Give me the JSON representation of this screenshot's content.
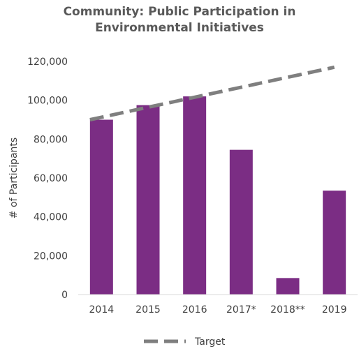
{
  "chart_data": {
    "type": "bar",
    "title_line1": "Community: Public Participation in",
    "title_line2": "Environmental Initiatives",
    "ylabel": "# of Participants",
    "xlabel": "",
    "categories": [
      "2014",
      "2015",
      "2016",
      "2017*",
      "2018**",
      "2019"
    ],
    "series": [
      {
        "values": [
          90000,
          97500,
          102000,
          74500,
          8500,
          53500
        ],
        "color": "#7b2d84"
      }
    ],
    "target": {
      "name": "Target",
      "start": 90000,
      "end": 117000,
      "color": "#7f7f7f",
      "style": "dashed"
    },
    "ylim": [
      0,
      120000
    ],
    "yticks": [
      0,
      20000,
      40000,
      60000,
      80000,
      100000,
      120000
    ],
    "ytick_labels": [
      "0",
      "20,000",
      "40,000",
      "60,000",
      "80,000",
      "100,000",
      "120,000"
    ],
    "grid": false,
    "legend_position": "bottom"
  }
}
